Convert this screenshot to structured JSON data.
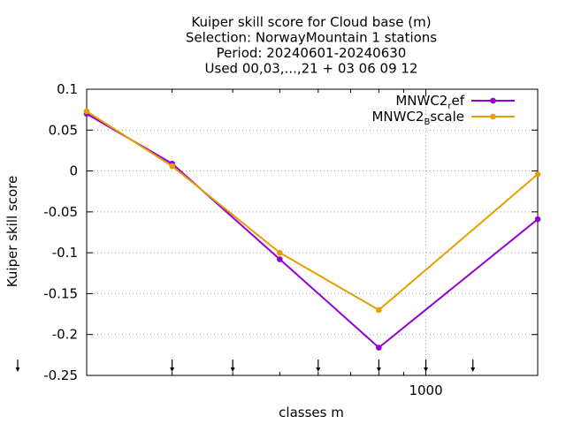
{
  "chart_data": {
    "type": "line",
    "title_lines": [
      "Kuiper skill score  for Cloud base (m)",
      "Selection: NorwayMountain       1 stations",
      "Period: 20240601-20240630",
      "Used 00,03,...,21 + 03 06 09 12"
    ],
    "xlabel": "classes m",
    "ylabel": "Kuiper skill score",
    "x_scale": "log",
    "xlim": [
      200,
      1700
    ],
    "ylim": [
      -0.25,
      0.1
    ],
    "yticks": [
      "0.1",
      "0.05",
      "0",
      "-0.05",
      "-0.1",
      "-0.15",
      "-0.2",
      "-0.25"
    ],
    "ytick_values": [
      0.1,
      0.05,
      0,
      -0.05,
      -0.1,
      -0.15,
      -0.2,
      -0.25
    ],
    "xticks": [
      "1000"
    ],
    "xtick_values": [
      1000
    ],
    "x_minor_ticks": [
      300,
      400,
      500,
      600,
      700,
      800,
      900
    ],
    "class_markers_x": [
      200,
      300,
      400,
      600,
      800,
      1000,
      1250
    ],
    "grid": true,
    "legend_position": "top-right",
    "series": [
      {
        "name_main": "MNWC2",
        "name_sub": "r",
        "name_end": "ef",
        "color": "#9400d3",
        "x": [
          200,
          300,
          500,
          800,
          1700
        ],
        "y": [
          0.07,
          0.009,
          -0.108,
          -0.216,
          -0.059
        ]
      },
      {
        "name_main": "MNWC2",
        "name_sub": "B",
        "name_end": "scale",
        "color": "#e69f00",
        "x": [
          200,
          300,
          500,
          800,
          1700
        ],
        "y": [
          0.073,
          0.006,
          -0.1,
          -0.17,
          -0.004
        ]
      }
    ]
  }
}
